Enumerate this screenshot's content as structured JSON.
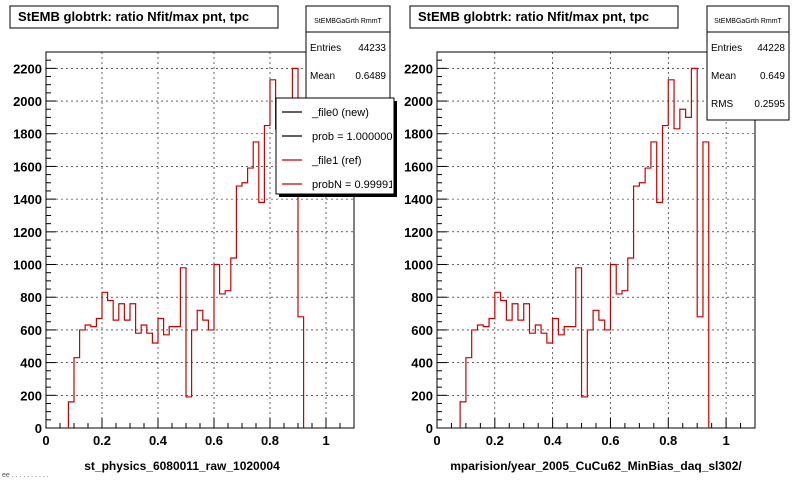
{
  "footer": "ee . . . . . . . . . . ",
  "chart_data": [
    {
      "type": "histogram",
      "title": "StEMB globtrk: ratio Nfit/max pnt, tpc",
      "xlabel": "st_physics_6080011_raw_1020004",
      "xlim": [
        0,
        1.1
      ],
      "ylim": [
        0,
        2300
      ],
      "xticks": [
        "0",
        "0.2",
        "0.4",
        "0.6",
        "0.8",
        "1"
      ],
      "yticks": [
        "0",
        "200",
        "400",
        "600",
        "800",
        "1000",
        "1200",
        "1400",
        "1600",
        "1800",
        "2000",
        "2200"
      ],
      "grid": true,
      "bin_width": 0.02,
      "bin_start": 0.08,
      "stats": {
        "name": "StEMBGaGrth RmmT",
        "rows": [
          {
            "label": "Entries",
            "value": "44233"
          },
          {
            "label": "Mean",
            "value": "0.6489"
          }
        ]
      },
      "legend": {
        "placement": "top-right",
        "entries": [
          {
            "label": "_file0 (new)",
            "color": "#000000"
          },
          {
            "label": "prob = 1.000000",
            "color": "#000000"
          },
          {
            "label": "_file1 (ref)",
            "color": "#cc0000"
          },
          {
            "label": "probN = 0.99991",
            "color": "#cc0000"
          }
        ]
      },
      "series": [
        {
          "color": "#cc0000",
          "values": [
            160,
            430,
            600,
            630,
            620,
            670,
            830,
            780,
            660,
            760,
            660,
            760,
            580,
            630,
            580,
            520,
            670,
            570,
            620,
            620,
            980,
            190,
            600,
            720,
            660,
            600,
            1000,
            820,
            840,
            1040,
            1480,
            1500,
            1590,
            1750,
            1380,
            1850,
            2130,
            1830,
            1950,
            1900,
            2200,
            680
          ]
        }
      ]
    },
    {
      "type": "histogram",
      "title": "StEMB globtrk: ratio Nfit/max pnt, tpc",
      "xlabel": "mparision/year_2005_CuCu62_MinBias_daq_sl302/",
      "xlim": [
        0,
        1.1
      ],
      "ylim": [
        0,
        2300
      ],
      "xticks": [
        "0",
        "0.2",
        "0.4",
        "0.6",
        "0.8",
        "1"
      ],
      "yticks": [
        "0",
        "200",
        "400",
        "600",
        "800",
        "1000",
        "1200",
        "1400",
        "1600",
        "1800",
        "2000",
        "2200"
      ],
      "grid": true,
      "bin_width": 0.02,
      "bin_start": 0.08,
      "stats": {
        "name": "StEMBGaGrth RmmT",
        "rows": [
          {
            "label": "Entries",
            "value": "44228"
          },
          {
            "label": "Mean",
            "value": "0.649"
          },
          {
            "label": "RMS",
            "value": "0.2595"
          }
        ]
      },
      "legend": null,
      "series": [
        {
          "color": "#cc0000",
          "values": [
            160,
            430,
            600,
            630,
            620,
            670,
            830,
            780,
            660,
            760,
            660,
            760,
            580,
            630,
            580,
            520,
            670,
            570,
            620,
            620,
            980,
            190,
            600,
            720,
            660,
            600,
            1000,
            820,
            840,
            1040,
            1480,
            1500,
            1590,
            1750,
            1380,
            1850,
            2130,
            1830,
            1950,
            1900,
            2200,
            680,
            1750
          ]
        }
      ]
    }
  ]
}
